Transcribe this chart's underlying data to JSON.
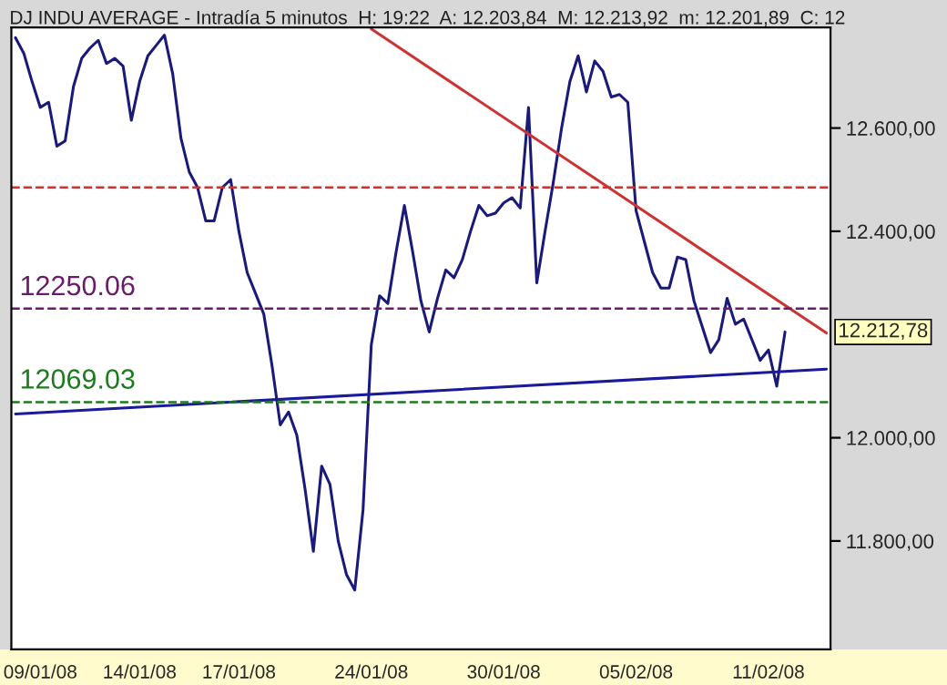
{
  "chart_data": {
    "type": "line",
    "title": "DJ INDU AVERAGE - Intradía 5 minutos  H: 19:22  A: 12.203,84  M: 12.213,92  m: 12.201,89  C: 12",
    "ylim": [
      11590,
      12795
    ],
    "categories": [
      null,
      null,
      null,
      "09/01/08",
      null,
      null,
      null,
      null,
      null,
      null,
      null,
      null,
      null,
      null,
      null,
      "14/01/08",
      null,
      null,
      null,
      null,
      null,
      null,
      null,
      null,
      null,
      null,
      null,
      "17/01/08",
      null,
      null,
      null,
      null,
      null,
      null,
      null,
      null,
      null,
      null,
      null,
      null,
      null,
      null,
      null,
      "24/01/08",
      null,
      null,
      null,
      null,
      null,
      null,
      null,
      null,
      null,
      null,
      null,
      null,
      null,
      null,
      null,
      "30/01/08",
      null,
      null,
      null,
      null,
      null,
      null,
      null,
      null,
      null,
      null,
      null,
      null,
      null,
      null,
      null,
      "05/02/08",
      null,
      null,
      null,
      null,
      null,
      null,
      null,
      null,
      null,
      null,
      null,
      null,
      null,
      null,
      null,
      "11/02/08",
      null,
      null,
      null,
      null,
      null,
      null,
      null
    ],
    "yticks": [
      {
        "value": 11800,
        "label": "11.800,00"
      },
      {
        "value": 12000,
        "label": "12.000,00"
      },
      {
        "value": 12400,
        "label": "12.400,00"
      },
      {
        "value": 12600,
        "label": "12.600,00"
      }
    ],
    "grid": false,
    "legend": false,
    "marker": "none",
    "line_style": "solid",
    "series": [
      {
        "color": "#1a1a7a",
        "values": [
          12775,
          12745,
          12690,
          12640,
          12650,
          12565,
          12575,
          12680,
          12735,
          12755,
          12770,
          12725,
          12735,
          12720,
          12615,
          12690,
          12740,
          12760,
          12780,
          12705,
          12580,
          12515,
          12485,
          12420,
          12420,
          12485,
          12500,
          12400,
          12320,
          12280,
          12240,
          12140,
          12025,
          12050,
          12005,
          11900,
          11780,
          11945,
          11910,
          11800,
          11735,
          11705,
          11860,
          12180,
          12275,
          12260,
          12360,
          12450,
          12360,
          12265,
          12205,
          12270,
          12325,
          12310,
          12345,
          12400,
          12450,
          12430,
          12435,
          12455,
          12465,
          12445,
          12640,
          12300,
          12400,
          12495,
          12600,
          12690,
          12740,
          12670,
          12730,
          12710,
          12660,
          12665,
          12650,
          12440,
          12380,
          12320,
          12290,
          12290,
          12350,
          12345,
          12265,
          12215,
          12165,
          12190,
          12270,
          12220,
          12230,
          12190,
          12150,
          12170,
          12100,
          12205,
          null,
          null,
          null,
          null,
          null
        ]
      },
      {
        "type": "line",
        "color": "#cc3333",
        "values": [
          null,
          null,
          null,
          null,
          null,
          null,
          null,
          null,
          null,
          null,
          null,
          null,
          null,
          null,
          null,
          null,
          null,
          null,
          null,
          null,
          null,
          null,
          null,
          null,
          null,
          null,
          null,
          null,
          null,
          null,
          null,
          null,
          null,
          null,
          null,
          null,
          null,
          null,
          null,
          null,
          null,
          null,
          null,
          12792,
          null,
          null,
          null,
          null,
          null,
          null,
          null,
          null,
          null,
          null,
          null,
          null,
          null,
          null,
          null,
          null,
          null,
          null,
          null,
          null,
          null,
          null,
          null,
          null,
          null,
          null,
          null,
          null,
          null,
          null,
          null,
          null,
          null,
          null,
          null,
          null,
          null,
          null,
          null,
          null,
          null,
          null,
          null,
          null,
          null,
          null,
          null,
          null,
          null,
          null,
          null,
          null,
          null,
          null,
          12203
        ]
      },
      {
        "type": "line",
        "color": "#1a1a9a",
        "values": [
          12046,
          null,
          null,
          null,
          null,
          null,
          null,
          null,
          null,
          null,
          null,
          null,
          null,
          null,
          null,
          null,
          null,
          null,
          null,
          null,
          null,
          null,
          null,
          null,
          null,
          null,
          null,
          null,
          null,
          null,
          null,
          null,
          null,
          null,
          null,
          null,
          null,
          null,
          null,
          null,
          null,
          null,
          null,
          null,
          null,
          null,
          null,
          null,
          null,
          null,
          null,
          null,
          null,
          null,
          null,
          null,
          null,
          null,
          null,
          null,
          null,
          null,
          null,
          null,
          null,
          null,
          null,
          null,
          null,
          null,
          null,
          null,
          null,
          null,
          null,
          null,
          null,
          null,
          null,
          null,
          null,
          null,
          null,
          null,
          null,
          null,
          null,
          null,
          null,
          null,
          null,
          null,
          null,
          null,
          null,
          null,
          null,
          null,
          12133
        ]
      }
    ],
    "ref_lines": [
      {
        "axis": "y",
        "value": 12485,
        "label": null,
        "color": "#cc3333",
        "line_style": "dashed"
      },
      {
        "axis": "y",
        "value": 12250.06,
        "label": "12250.06",
        "color": "#6a1b6a",
        "line_style": "dashed"
      },
      {
        "axis": "y",
        "value": 12069.03,
        "label": "12069.03",
        "color": "#1e7a1e",
        "line_style": "dashed"
      }
    ],
    "annotations": [
      "12.212,78"
    ]
  }
}
